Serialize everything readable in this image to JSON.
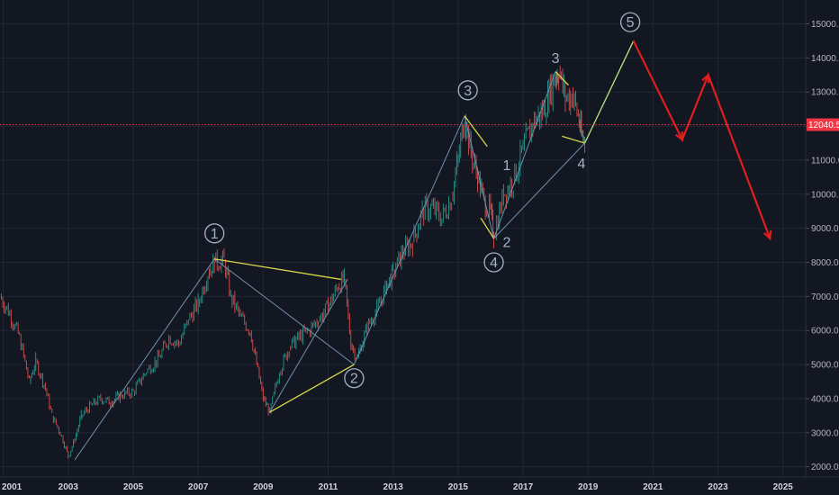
{
  "chart_data": {
    "type": "line",
    "title": "",
    "xlabel": "",
    "ylabel": "",
    "ylim": [
      1700,
      15700
    ],
    "xlim": [
      2000.9,
      2025.7
    ],
    "grid": true,
    "y_ticks": [
      "2000.0",
      "3000.0",
      "4000.0",
      "5000.0",
      "6000.0",
      "7000.0",
      "8000.0",
      "9000.0",
      "10000.0",
      "11000.0",
      "12000.0",
      "13000.0",
      "14000.0",
      "15000.0"
    ],
    "y_tick_values": [
      2000,
      3000,
      4000,
      5000,
      6000,
      7000,
      8000,
      9000,
      10000,
      11000,
      12000,
      13000,
      14000,
      15000
    ],
    "x_ticks": [
      "2001",
      "2003",
      "2005",
      "2007",
      "2009",
      "2011",
      "2013",
      "2015",
      "2017",
      "2019",
      "2021",
      "2023",
      "2025"
    ],
    "x_tick_values": [
      2001,
      2003,
      2005,
      2007,
      2009,
      2011,
      2013,
      2015,
      2017,
      2019,
      2021,
      2023,
      2025
    ],
    "current_price": {
      "value": 12040.5,
      "label": "12040.5",
      "color": "#f23645"
    },
    "price_series": {
      "name": "",
      "x": [
        2000.9,
        2001.2,
        2001.5,
        2001.8,
        2002.0,
        2002.3,
        2002.5,
        2002.8,
        2003.0,
        2003.2,
        2003.4,
        2003.7,
        2004.0,
        2004.3,
        2004.6,
        2005.0,
        2005.4,
        2005.8,
        2006.1,
        2006.4,
        2006.7,
        2007.0,
        2007.3,
        2007.5,
        2007.8,
        2008.0,
        2008.3,
        2008.6,
        2008.8,
        2009.0,
        2009.2,
        2009.5,
        2009.8,
        2010.1,
        2010.4,
        2010.7,
        2011.0,
        2011.3,
        2011.5,
        2011.7,
        2011.9,
        2012.2,
        2012.5,
        2012.8,
        2013.0,
        2013.3,
        2013.6,
        2013.9,
        2014.2,
        2014.5,
        2014.8,
        2015.0,
        2015.2,
        2015.4,
        2015.6,
        2015.8,
        2016.0,
        2016.1,
        2016.4,
        2016.7,
        2017.0,
        2017.3,
        2017.6,
        2017.8,
        2018.0,
        2018.1,
        2018.3,
        2018.5,
        2018.7,
        2018.8,
        2018.9
      ],
      "y": [
        7000,
        6500,
        5800,
        4500,
        5100,
        4300,
        3500,
        2900,
        2300,
        2800,
        3500,
        3800,
        4000,
        3900,
        4100,
        4200,
        4800,
        5200,
        5800,
        5600,
        6300,
        6800,
        7700,
        8000,
        8050,
        7000,
        6400,
        6000,
        5000,
        4000,
        3600,
        4800,
        5500,
        5800,
        6000,
        6300,
        6700,
        7300,
        7500,
        5600,
        5200,
        6100,
        6600,
        7300,
        7700,
        8300,
        8600,
        9500,
        9600,
        9300,
        9900,
        11000,
        12300,
        11200,
        10500,
        9800,
        9500,
        8800,
        10000,
        10400,
        11300,
        12100,
        12400,
        12900,
        13500,
        13600,
        12800,
        12900,
        12300,
        11700,
        11600
      ]
    },
    "wave_lines": [
      {
        "x1": 2003.2,
        "y1": 2200,
        "x2": 2007.5,
        "y2": 8100,
        "color": "#6f8fae"
      },
      {
        "x1": 2007.5,
        "y1": 8100,
        "x2": 2011.8,
        "y2": 5000,
        "color": "#6f8fae"
      },
      {
        "x1": 2009.2,
        "y1": 3600,
        "x2": 2011.6,
        "y2": 7500,
        "color": "#6f8fae"
      },
      {
        "x1": 2011.8,
        "y1": 5000,
        "x2": 2015.2,
        "y2": 12300,
        "color": "#6f8fae"
      },
      {
        "x1": 2015.2,
        "y1": 12300,
        "x2": 2016.1,
        "y2": 8700,
        "color": "#6f8fae"
      },
      {
        "x1": 2016.1,
        "y1": 8700,
        "x2": 2018.9,
        "y2": 11500,
        "color": "#6f8fae"
      },
      {
        "x1": 2016.1,
        "y1": 8700,
        "x2": 2018.0,
        "y2": 13600,
        "color": "#6f8fae"
      },
      {
        "x1": 2018.9,
        "y1": 11500,
        "x2": 2020.4,
        "y2": 14500,
        "color": "#6f8fae"
      },
      {
        "x1": 2007.5,
        "y1": 8100,
        "x2": 2011.4,
        "y2": 7500,
        "color": "#d8d84a"
      },
      {
        "x1": 2009.2,
        "y1": 3600,
        "x2": 2011.8,
        "y2": 5000,
        "color": "#d8d84a"
      },
      {
        "x1": 2015.2,
        "y1": 12300,
        "x2": 2015.9,
        "y2": 11400,
        "color": "#d8d84a"
      },
      {
        "x1": 2015.7,
        "y1": 9300,
        "x2": 2016.1,
        "y2": 8700,
        "color": "#d8d84a"
      },
      {
        "x1": 2018.0,
        "y1": 13600,
        "x2": 2018.4,
        "y2": 13200,
        "color": "#d8d84a"
      },
      {
        "x1": 2018.2,
        "y1": 11700,
        "x2": 2018.9,
        "y2": 11500,
        "color": "#d8d84a"
      },
      {
        "x1": 2018.9,
        "y1": 11500,
        "x2": 2020.4,
        "y2": 14500,
        "color": "#b6e07a"
      }
    ],
    "projection": {
      "color": "#e01e1e",
      "x": [
        2020.4,
        2021.9,
        2022.7,
        2024.6
      ],
      "y": [
        14500,
        11600,
        13500,
        8700
      ]
    },
    "wave_labels": [
      {
        "text": "1",
        "x": 2007.5,
        "y": 8850,
        "circled": true
      },
      {
        "text": "2",
        "x": 2011.8,
        "y": 4600,
        "circled": true
      },
      {
        "text": "3",
        "x": 2015.3,
        "y": 13050,
        "circled": true
      },
      {
        "text": "4",
        "x": 2016.1,
        "y": 8000,
        "circled": true
      },
      {
        "text": "5",
        "x": 2020.3,
        "y": 15050,
        "circled": true
      },
      {
        "text": "1",
        "x": 2016.5,
        "y": 10850,
        "circled": false
      },
      {
        "text": "2",
        "x": 2016.5,
        "y": 8600,
        "circled": false
      },
      {
        "text": "3",
        "x": 2018.0,
        "y": 14000,
        "circled": false
      },
      {
        "text": "4",
        "x": 2018.8,
        "y": 10900,
        "circled": false
      }
    ]
  }
}
